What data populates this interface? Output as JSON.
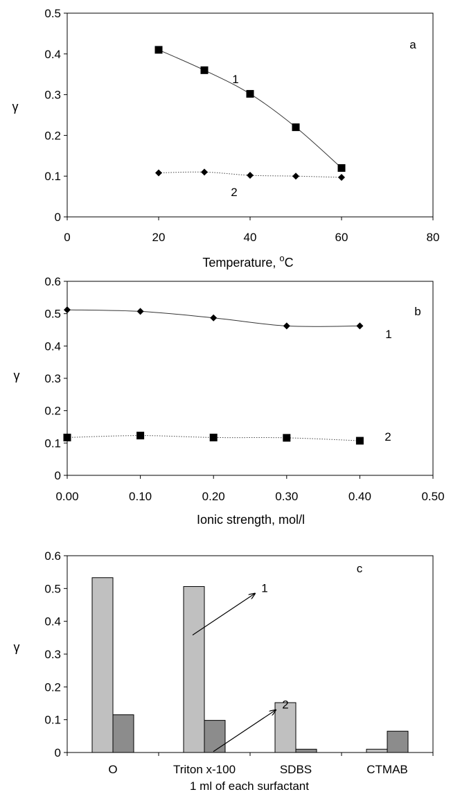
{
  "chart_data": [
    {
      "panel": "a",
      "type": "line",
      "panel_label": "a",
      "xlabel": "Temperature,",
      "xlabel_unit_sup": "o",
      "xlabel_unit": "C",
      "ylabel": "γ",
      "xlim": [
        0,
        80
      ],
      "ylim": [
        0,
        0.5
      ],
      "xticks": [
        0,
        20,
        40,
        60,
        80
      ],
      "yticks": [
        0,
        0.1,
        0.2,
        0.3,
        0.4,
        0.5
      ],
      "xtick_labels": [
        "0",
        "20",
        "40",
        "60",
        "80"
      ],
      "ytick_labels": [
        "0",
        "0.1",
        "0.2",
        "0.3",
        "0.4",
        "0.5"
      ],
      "grid": false,
      "series": [
        {
          "name": "1",
          "marker": "square",
          "line": "solid",
          "color": "#000000",
          "x": [
            20,
            30,
            40,
            50,
            60
          ],
          "y": [
            0.41,
            0.36,
            0.302,
            0.22,
            0.12
          ]
        },
        {
          "name": "2",
          "marker": "diamond",
          "line": "dotted",
          "color": "#000000",
          "x": [
            20,
            30,
            40,
            50,
            60
          ],
          "y": [
            0.108,
            0.11,
            0.102,
            0.1,
            0.097
          ]
        }
      ]
    },
    {
      "panel": "b",
      "type": "line",
      "panel_label": "b",
      "xlabel": "Ionic strength, mol/l",
      "ylabel": "γ",
      "xlim": [
        0,
        0.5
      ],
      "ylim": [
        0,
        0.6
      ],
      "xticks": [
        0,
        0.1,
        0.2,
        0.3,
        0.4,
        0.5
      ],
      "yticks": [
        0,
        0.1,
        0.2,
        0.3,
        0.4,
        0.5,
        0.6
      ],
      "xtick_labels": [
        "0.00",
        "0.10",
        "0.20",
        "0.30",
        "0.40",
        "0.50"
      ],
      "ytick_labels": [
        "0",
        "0.1",
        "0.2",
        "0.3",
        "0.4",
        "0.5",
        "0.6"
      ],
      "grid": false,
      "series": [
        {
          "name": "1",
          "marker": "diamond",
          "line": "solid",
          "color": "#000000",
          "x": [
            0.0,
            0.1,
            0.2,
            0.3,
            0.4
          ],
          "y": [
            0.512,
            0.507,
            0.487,
            0.462,
            0.462
          ]
        },
        {
          "name": "2",
          "marker": "square",
          "line": "dotted",
          "color": "#000000",
          "x": [
            0.0,
            0.1,
            0.2,
            0.3,
            0.4
          ],
          "y": [
            0.117,
            0.123,
            0.117,
            0.116,
            0.107
          ]
        }
      ]
    },
    {
      "panel": "c",
      "type": "bar",
      "panel_label": "c",
      "xlabel": "1 ml of each surfactant",
      "ylabel": "γ",
      "ylim": [
        0,
        0.6
      ],
      "yticks": [
        0,
        0.1,
        0.2,
        0.3,
        0.4,
        0.5,
        0.6
      ],
      "ytick_labels": [
        "0",
        "0.1",
        "0.2",
        "0.3",
        "0.4",
        "0.5",
        "0.6"
      ],
      "grid": false,
      "categories": [
        "O",
        "Triton x-100",
        "SDBS",
        "CTMAB"
      ],
      "series": [
        {
          "name": "1",
          "color": "#c0c0c0",
          "values": [
            0.533,
            0.506,
            0.152,
            0.01
          ]
        },
        {
          "name": "2",
          "color": "#8c8c8c",
          "values": [
            0.115,
            0.098,
            0.01,
            0.065
          ]
        }
      ],
      "annotations": [
        {
          "text": "1",
          "series": 0,
          "category": 1
        },
        {
          "text": "2",
          "series": 1,
          "category": 1
        }
      ]
    }
  ]
}
